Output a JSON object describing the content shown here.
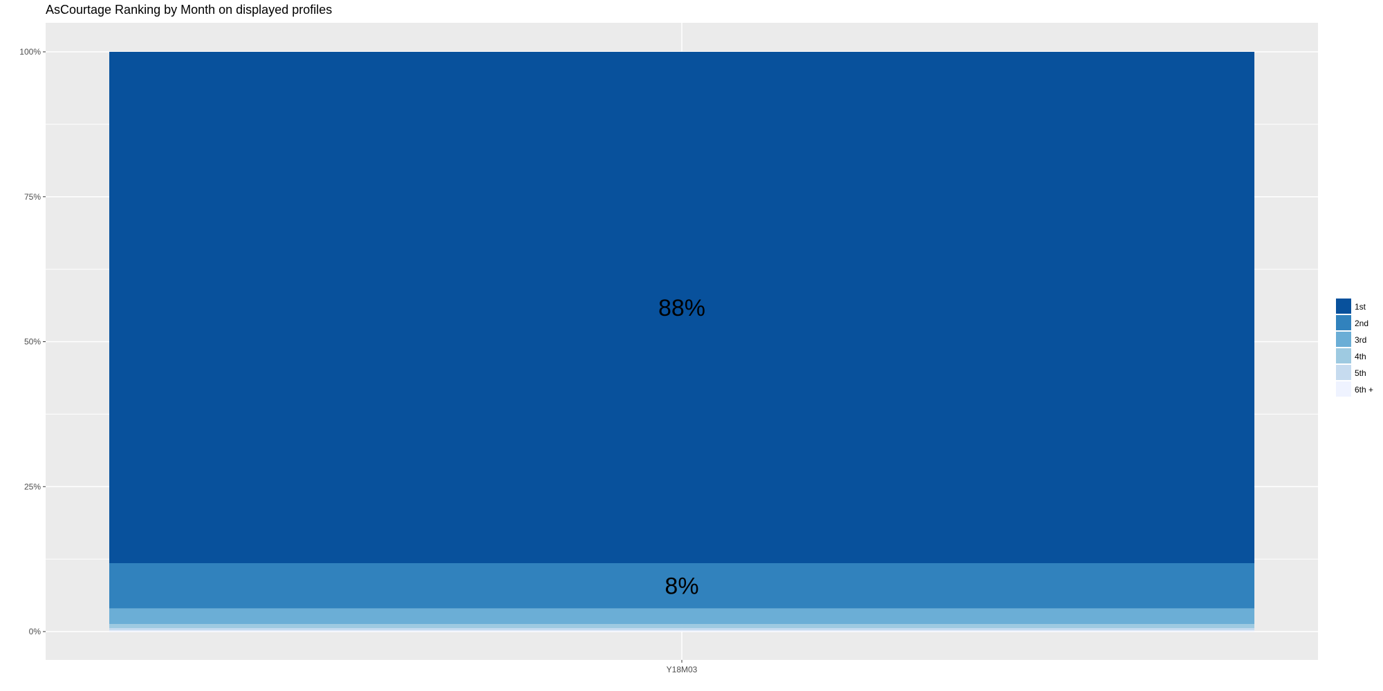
{
  "chart_data": {
    "type": "bar",
    "stacked": true,
    "title": "AsCourtage Ranking by Month on displayed profiles",
    "xlabel": "",
    "ylabel": "",
    "categories": [
      "Y18M03"
    ],
    "ylim": [
      0,
      1
    ],
    "yticks": [
      0,
      0.25,
      0.5,
      0.75,
      1
    ],
    "ytick_labels": [
      "0%",
      "25%",
      "50%",
      "75%",
      "100%"
    ],
    "grid": true,
    "legend_position": "right",
    "series": [
      {
        "name": "1st",
        "values": [
          0.882
        ],
        "color": "#08519C"
      },
      {
        "name": "2nd",
        "values": [
          0.078
        ],
        "color": "#3182BD"
      },
      {
        "name": "3rd",
        "values": [
          0.027
        ],
        "color": "#6BAED6"
      },
      {
        "name": "4th",
        "values": [
          0.007
        ],
        "color": "#9ECAE1"
      },
      {
        "name": "5th",
        "values": [
          0.004
        ],
        "color": "#C6DBEF"
      },
      {
        "name": "6th +",
        "values": [
          0.002
        ],
        "color": "#EFF3FF"
      }
    ],
    "data_labels": [
      {
        "series": "1st",
        "text": "88%"
      },
      {
        "series": "2nd",
        "text": "8%"
      }
    ]
  }
}
